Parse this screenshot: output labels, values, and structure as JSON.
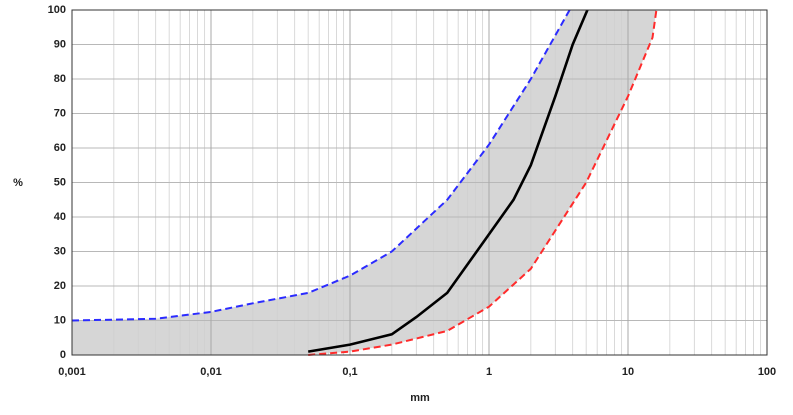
{
  "chart_data": {
    "type": "line",
    "x_label": "mm",
    "y_label": "%",
    "xscale": "log",
    "xlim": [
      0.001,
      100
    ],
    "xticks": [
      {
        "value": 0.001,
        "label": "0,001"
      },
      {
        "value": 0.01,
        "label": "0,01"
      },
      {
        "value": 0.1,
        "label": "0,1"
      },
      1,
      10,
      100
    ],
    "ylim": [
      0,
      100
    ],
    "yticks": [
      0,
      10,
      20,
      30,
      40,
      50,
      60,
      70,
      80,
      90,
      100
    ],
    "grid": true,
    "fill_between": {
      "series": [
        0,
        2
      ],
      "color": "#d6d6d6"
    },
    "series": [
      {
        "color": "#2b2bff",
        "dash": true,
        "x": [
          0.001,
          0.004,
          0.01,
          0.02,
          0.05,
          0.1,
          0.2,
          0.5,
          1,
          2,
          3.8
        ],
        "values": [
          10,
          10.5,
          12.5,
          15,
          18,
          23,
          30,
          45,
          61,
          80,
          100
        ]
      },
      {
        "color": "#000000",
        "dash": false,
        "x": [
          0.05,
          0.1,
          0.2,
          0.3,
          0.5,
          1,
          1.5,
          2,
          3,
          4,
          5.1
        ],
        "values": [
          1,
          3,
          6,
          11,
          18,
          35,
          45,
          55,
          75,
          90,
          100
        ]
      },
      {
        "color": "#ff2b2b",
        "dash": true,
        "x": [
          0.05,
          0.1,
          0.2,
          0.5,
          1,
          2,
          5,
          10,
          15,
          16
        ],
        "values": [
          0,
          1,
          3,
          7,
          14,
          25,
          50,
          75,
          92,
          100
        ]
      }
    ]
  }
}
